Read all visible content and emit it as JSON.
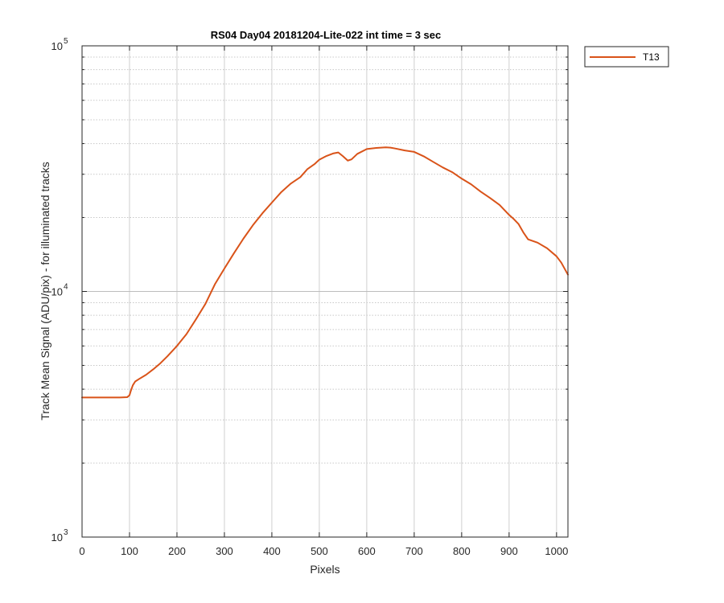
{
  "chart_data": {
    "type": "line",
    "title": "RS04 Day04 20181204-Lite-022 int time = 3 sec",
    "xlabel": "Pixels",
    "ylabel": "Track Mean Signal (ADU/pix) - for illuminated tracks",
    "xlim": [
      0,
      1024
    ],
    "ylim": [
      1000,
      100000
    ],
    "yscale": "log",
    "grid": "major and minor (dotted)",
    "legend_position": "outside top-right",
    "x_ticks": [
      "0",
      "100",
      "200",
      "300",
      "400",
      "500",
      "600",
      "700",
      "800",
      "900",
      "1000"
    ],
    "y_ticks": [
      {
        "base": "10",
        "exp": "3"
      },
      {
        "base": "10",
        "exp": "4"
      },
      {
        "base": "10",
        "exp": "5"
      }
    ],
    "series": [
      {
        "name": "T13",
        "color": "#D95319",
        "x": [
          0,
          20,
          40,
          60,
          80,
          95,
          100,
          103,
          107,
          112,
          120,
          135,
          150,
          165,
          180,
          200,
          220,
          240,
          260,
          280,
          300,
          320,
          340,
          360,
          380,
          400,
          420,
          440,
          460,
          475,
          490,
          500,
          515,
          530,
          540,
          550,
          560,
          568,
          580,
          600,
          620,
          640,
          650,
          660,
          680,
          700,
          720,
          740,
          760,
          780,
          800,
          820,
          840,
          860,
          880,
          900,
          910,
          920,
          930,
          940,
          960,
          980,
          1000,
          1010,
          1024
        ],
        "y": [
          3700,
          3700,
          3700,
          3700,
          3700,
          3710,
          3780,
          3950,
          4150,
          4300,
          4400,
          4580,
          4820,
          5100,
          5450,
          6000,
          6700,
          7700,
          8900,
          10700,
          12400,
          14300,
          16400,
          18600,
          20800,
          23000,
          25400,
          27500,
          29200,
          31500,
          33000,
          34400,
          35600,
          36500,
          36800,
          35500,
          34100,
          34500,
          36300,
          38000,
          38400,
          38600,
          38500,
          38200,
          37500,
          37000,
          35500,
          33700,
          32000,
          30600,
          28800,
          27300,
          25500,
          24000,
          22500,
          20500,
          19700,
          18800,
          17400,
          16300,
          15800,
          15000,
          13900,
          13100,
          11700
        ]
      }
    ]
  }
}
